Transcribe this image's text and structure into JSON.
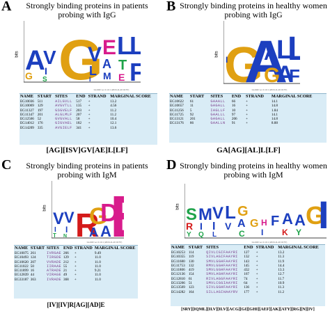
{
  "panels": [
    {
      "label": "A",
      "title_line1": "Strongly binding proteins in patients",
      "title_line2": "probing with IgG",
      "ylabel": "bits",
      "xlabel": "N",
      "caption": "GLAM2 ver 4.10.1 (2016-11-20 02:57)",
      "consensus": "[AG][ISV]GV[AE]L[LF]",
      "columns": [
        "NAME",
        "START",
        "SITES",
        "END",
        "STRAND",
        "MARGINAL SCORE"
      ],
      "rows": [
        [
          "EG10036",
          "511",
          "AILGVLL",
          "517",
          "+",
          "13.2"
        ],
        [
          "EG10069",
          "129",
          "AVGVTLL",
          "135",
          "+",
          "4.56"
        ],
        [
          "EG11327",
          "197",
          "GSGVELF",
          "203",
          "+",
          "11.2"
        ],
        [
          "EG11347",
          "201",
          "ALGLMLF",
          "207",
          "+",
          "11.2"
        ],
        [
          "EG12566",
          "52",
          "GVGVALL",
          "58",
          "+",
          "10.4"
        ],
        [
          "EG14012",
          "176",
          "GIGVAEL",
          "182",
          "+",
          "12.1"
        ],
        [
          "EG14209",
          "335",
          "AVGIELF",
          "341",
          "+",
          "13.6"
        ]
      ]
    },
    {
      "label": "B",
      "title_line1": "Strongly binding proteins in healthy women",
      "title_line2": "probing with IgG",
      "ylabel": "bits",
      "xlabel": "N",
      "caption": "GLAM2 ver 4.10.1 (2016-11-20 02:57)",
      "consensus": "GA[AG][AL]L[LF]",
      "columns": [
        "NAME",
        "START",
        "SITES",
        "END",
        "STRAND",
        "MARGINAL SCORE"
      ],
      "rows": [
        [
          "EG10622",
          "61",
          "GAAALL",
          "66",
          "+",
          "14.1"
        ],
        [
          "EG10657",
          "11",
          "GAGALL",
          "16",
          "+",
          "14.8"
        ],
        [
          "EG11256",
          "5",
          "IAGLLF",
          "10",
          "+",
          "1.84"
        ],
        [
          "EG11725",
          "92",
          "GAALLL",
          "97",
          "+",
          "14.1"
        ],
        [
          "EG13121",
          "201",
          "GAGALL",
          "206",
          "+",
          "14.8"
        ],
        [
          "EG13176",
          "86",
          "GAALLN",
          "91",
          "+",
          "8.88"
        ]
      ]
    },
    {
      "label": "C",
      "title_line1": "Strongly binding proteins in patients",
      "title_line2": "probing with IgM",
      "ylabel": "bits",
      "xlabel": "N",
      "caption": "GLAM2 ver 4.10.1 (2016-11-20 02:57)",
      "consensus": "[IV][IV]R[AG][AD]E",
      "columns": [
        "NAME",
        "START",
        "SITES",
        "END",
        "STRAND",
        "MARGINAL SCORE"
      ],
      "rows": [
        [
          "EG10075",
          "261",
          "IVRGAE",
          "266",
          "+",
          "9.49"
        ],
        [
          "EG10493",
          "124",
          "TIRGDE",
          "129",
          "+",
          "11.0"
        ],
        [
          "EG10620",
          "207",
          "VVRADE",
          "212",
          "+",
          "11.0"
        ],
        [
          "EG11022",
          "50",
          "IIRAAE",
          "55",
          "+",
          "11.0"
        ],
        [
          "EG11899",
          "16",
          "ATRADE",
          "21",
          "+",
          "9.21"
        ],
        [
          "EG12839",
          "44",
          "VIRAGE",
          "49",
          "+",
          "11.0"
        ],
        [
          "EG33187",
          "363",
          "IVRADE",
          "368",
          "+",
          "11.0"
        ]
      ]
    },
    {
      "label": "D",
      "title_line1": "Strongly binding proteins in healthy women",
      "title_line2": "probing with IgM",
      "ylabel": "bits",
      "xlabel": "N",
      "caption": "GLAM2 ver 4.10.1 (2016-11-20 02:57)",
      "consensus": "[SRY][IQML][ILV][ILV][ACG][GI][GHI][AEF][AK][ATY][RG][N][IV]",
      "columns": [
        "NAME",
        "START",
        "SITES",
        "END",
        "STRAND",
        "MARGINAL SCORE"
      ],
      "rows": [
        [
          "EG10253",
          "114",
          "QIVLCGIFAAYRI",
          "127",
          "+",
          "13.2"
        ],
        [
          "EG10355",
          "119",
          "SIVLAGIFAAYRI",
          "132",
          "+",
          "11.3"
        ],
        [
          "EG11680",
          "130",
          "SMVLGGHFAAYRI",
          "143",
          "+",
          "11.9"
        ],
        [
          "EG11753",
          "132",
          "RMVLGGHFAAYRI",
          "145",
          "+",
          "14.4"
        ],
        [
          "EG11806",
          "419",
          "SMVLGGHFAAYRI",
          "432",
          "+",
          "13.3"
        ],
        [
          "EG12136",
          "154",
          "SMVLAGHFAAYRI",
          "167",
          "+",
          "12.7"
        ],
        [
          "EG12810",
          "61",
          "RIVLAGGFAAYRI",
          "74",
          "+",
          "11.7"
        ],
        [
          "EG13266",
          "51",
          "SMVLCGGIAAYRI",
          "64",
          "+",
          "10.9"
        ],
        [
          "EG13569",
          "123",
          "SIVLGGHFAAYRI",
          "136",
          "+",
          "11.3"
        ],
        [
          "EG14282",
          "164",
          "SILLAGIHAAYRV",
          "177",
          "+",
          "11.2"
        ]
      ]
    }
  ]
}
